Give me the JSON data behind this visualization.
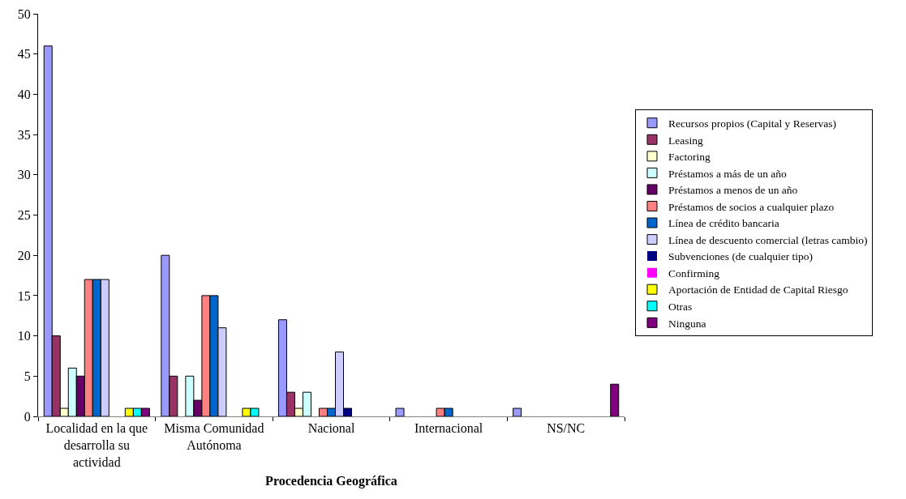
{
  "chart_data": {
    "type": "bar",
    "xlabel": "Procedencia Geográfica",
    "categories": [
      "Localidad en la que desarrolla su actividad",
      "Misma Comunidad Autónoma",
      "Nacional",
      "Internacional",
      "NS/NC"
    ],
    "series": [
      {
        "name": "Recursos propios (Capital y Reservas)",
        "color": "#9999ff",
        "values": [
          46,
          20,
          12,
          1,
          1
        ]
      },
      {
        "name": "Leasing",
        "color": "#993366",
        "values": [
          10,
          5,
          3,
          0,
          0
        ]
      },
      {
        "name": "Factoring",
        "color": "#ffffcc",
        "values": [
          1,
          0,
          1,
          0,
          0
        ]
      },
      {
        "name": "Préstamos a más de un año",
        "color": "#ccffff",
        "values": [
          6,
          5,
          3,
          0,
          0
        ]
      },
      {
        "name": "Préstamos a menos de un año",
        "color": "#660066",
        "values": [
          5,
          2,
          0,
          0,
          0
        ]
      },
      {
        "name": "Préstamos de socios a cualquier plazo",
        "color": "#ff8080",
        "values": [
          17,
          15,
          1,
          1,
          0
        ]
      },
      {
        "name": "Línea de crédito bancaria",
        "color": "#0066cc",
        "values": [
          17,
          15,
          1,
          1,
          0
        ]
      },
      {
        "name": "Línea de descuento comercial (letras cambio)",
        "color": "#ccccff",
        "values": [
          17,
          11,
          8,
          0,
          0
        ]
      },
      {
        "name": "Subvenciones (de cualquier tipo)",
        "color": "#000080",
        "values": [
          0,
          0,
          1,
          0,
          0
        ]
      },
      {
        "name": "Confirming",
        "color": "#ff00ff",
        "values": [
          0,
          0,
          0,
          0,
          0
        ]
      },
      {
        "name": "Aportación de Entidad de Capital Riesgo",
        "color": "#ffff00",
        "values": [
          1,
          1,
          0,
          0,
          0
        ]
      },
      {
        "name": "Otras",
        "color": "#00ffff",
        "values": [
          1,
          1,
          0,
          0,
          0
        ]
      },
      {
        "name": "Ninguna",
        "color": "#800080",
        "values": [
          1,
          0,
          0,
          0,
          4
        ]
      }
    ],
    "ylim": [
      0,
      50
    ],
    "yticks": [
      0,
      5,
      10,
      15,
      20,
      25,
      30,
      35,
      40,
      45,
      50
    ],
    "grid": false,
    "legend": "right"
  }
}
